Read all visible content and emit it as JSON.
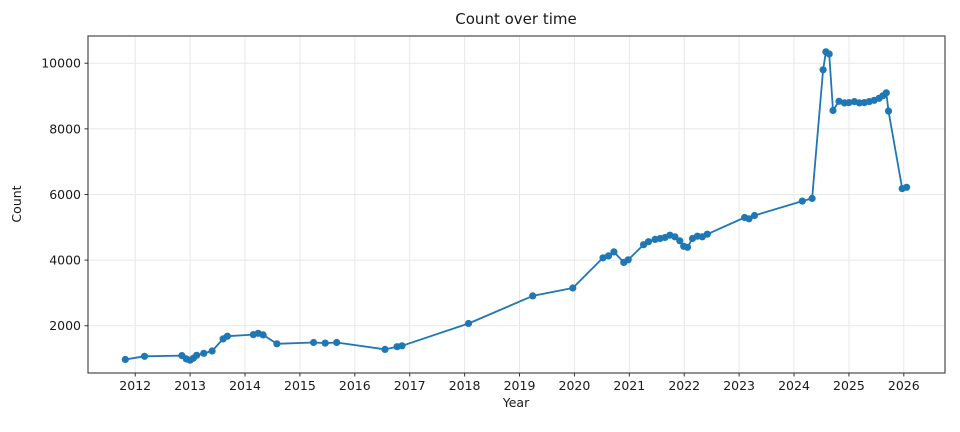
{
  "figure": {
    "title": "Count over time",
    "xlabel": "Year",
    "ylabel": "Count"
  },
  "chart_data": {
    "type": "line",
    "title": "Count over time",
    "xlabel": "Year",
    "ylabel": "Count",
    "legend": null,
    "grid": true,
    "line_color": "#1f77b4",
    "marker": "circle",
    "xlim": [
      2011.14,
      2026.75
    ],
    "ylim": [
      560,
      10830
    ],
    "xticks": [
      2012,
      2013,
      2014,
      2015,
      2016,
      2017,
      2018,
      2019,
      2020,
      2021,
      2022,
      2023,
      2024,
      2025,
      2026
    ],
    "yticks": [
      2000,
      4000,
      6000,
      8000,
      10000
    ],
    "points": [
      [
        2011.82,
        970
      ],
      [
        2012.17,
        1070
      ],
      [
        2012.85,
        1090
      ],
      [
        2012.93,
        990
      ],
      [
        2013.0,
        950
      ],
      [
        2013.06,
        1010
      ],
      [
        2013.12,
        1100
      ],
      [
        2013.25,
        1160
      ],
      [
        2013.4,
        1230
      ],
      [
        2013.6,
        1600
      ],
      [
        2013.68,
        1680
      ],
      [
        2014.15,
        1730
      ],
      [
        2014.24,
        1770
      ],
      [
        2014.33,
        1720
      ],
      [
        2014.58,
        1450
      ],
      [
        2015.25,
        1490
      ],
      [
        2015.46,
        1470
      ],
      [
        2015.67,
        1490
      ],
      [
        2016.55,
        1280
      ],
      [
        2016.77,
        1360
      ],
      [
        2016.86,
        1390
      ],
      [
        2018.07,
        2070
      ],
      [
        2019.24,
        2910
      ],
      [
        2019.97,
        3150
      ],
      [
        2020.52,
        4070
      ],
      [
        2020.62,
        4130
      ],
      [
        2020.72,
        4250
      ],
      [
        2020.9,
        3930
      ],
      [
        2020.98,
        4010
      ],
      [
        2021.26,
        4470
      ],
      [
        2021.35,
        4560
      ],
      [
        2021.47,
        4630
      ],
      [
        2021.56,
        4660
      ],
      [
        2021.65,
        4690
      ],
      [
        2021.74,
        4760
      ],
      [
        2021.83,
        4710
      ],
      [
        2021.92,
        4590
      ],
      [
        2021.99,
        4420
      ],
      [
        2022.06,
        4390
      ],
      [
        2022.15,
        4660
      ],
      [
        2022.24,
        4730
      ],
      [
        2022.33,
        4710
      ],
      [
        2022.42,
        4790
      ],
      [
        2023.1,
        5300
      ],
      [
        2023.18,
        5260
      ],
      [
        2023.28,
        5360
      ],
      [
        2024.15,
        5800
      ],
      [
        2024.33,
        5880
      ],
      [
        2024.53,
        9800
      ],
      [
        2024.58,
        10350
      ],
      [
        2024.64,
        10280
      ],
      [
        2024.71,
        8560
      ],
      [
        2024.82,
        8840
      ],
      [
        2024.92,
        8790
      ],
      [
        2025.0,
        8800
      ],
      [
        2025.1,
        8830
      ],
      [
        2025.19,
        8790
      ],
      [
        2025.28,
        8800
      ],
      [
        2025.37,
        8830
      ],
      [
        2025.46,
        8870
      ],
      [
        2025.55,
        8930
      ],
      [
        2025.62,
        9010
      ],
      [
        2025.68,
        9100
      ],
      [
        2025.72,
        8540
      ],
      [
        2025.97,
        6180
      ],
      [
        2026.05,
        6220
      ]
    ]
  },
  "style": {
    "grid_color": "#e8e8e8",
    "spine_color": "#4a4a4a",
    "tick_color": "#333333"
  }
}
